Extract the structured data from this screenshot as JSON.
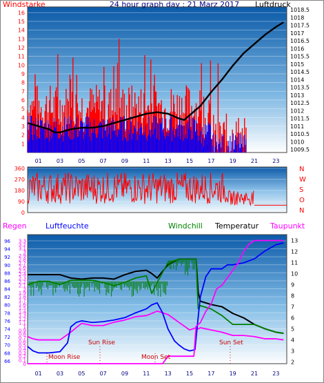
{
  "title": "24 hour graph day : 21 Marz 2017",
  "labels": {
    "windstaerke": "Windstarke",
    "luftdruck": "Luftdruck",
    "regen": "Regen",
    "luftfeuchte": "Luftfeuchte",
    "windchill": "Windchill",
    "temperatur": "Temperatur",
    "taupunkt": "Taupunkt",
    "sun_rise": "Sun Rise",
    "sun_set": "Sun Set",
    "moon_rise": "Moon Rise",
    "moon_set": "Moon Set"
  },
  "colors": {
    "wind": "#ff0000",
    "gust": "#0000ff",
    "pressure": "#000000",
    "windchill": "#008000",
    "temperature": "#000000",
    "dewpoint": "#ff00ff",
    "humidity": "#0000ff",
    "rain": "#ff00ff",
    "regen_label": "#ff00ff",
    "luftfeuchte_label": "#0000ff",
    "windchill_label": "#008000",
    "taupunkt_label": "#ff00ff",
    "windstaerke_label": "#ff0000",
    "direction_label": "#ff0000",
    "bg_top": "#0a5fb0",
    "bg_bottom": "#ffffff"
  },
  "chart_data": [
    {
      "type": "line",
      "panel": "wind-pressure",
      "x_ticks": [
        "01",
        "03",
        "05",
        "07",
        "09",
        "11",
        "13",
        "15",
        "17",
        "19",
        "21",
        "23"
      ],
      "xlim": [
        0,
        24
      ],
      "left_axis": {
        "label": "Windstarke",
        "ticks": [
          1,
          2,
          3,
          4,
          5,
          6,
          7,
          8,
          9,
          10,
          11,
          12,
          13,
          14,
          15,
          16
        ],
        "ylim": [
          0,
          16.5
        ]
      },
      "right_axis": {
        "label": "Luftdruck",
        "ticks": [
          "1009.5",
          "1010",
          "1010.5",
          "1011",
          "1011.5",
          "1012",
          "1012.5",
          "1013",
          "1013.5",
          "1014",
          "1014.5",
          "1015",
          "1015.5",
          "1016",
          "1016.5",
          "1017",
          "1017.5",
          "1018",
          "1018.5"
        ],
        "ylim": [
          1009.3,
          1018.6
        ]
      },
      "series": [
        {
          "name": "",
          "axis": "right",
          "points": [
            [
              0,
              1011.2
            ],
            [
              1,
              1011.0
            ],
            [
              2,
              1010.8
            ],
            [
              2.5,
              1010.6
            ],
            [
              3,
              1010.6
            ],
            [
              4,
              1010.8
            ],
            [
              5,
              1010.9
            ],
            [
              6,
              1010.9
            ],
            [
              7,
              1011.0
            ],
            [
              8,
              1011.2
            ],
            [
              9,
              1011.4
            ],
            [
              10,
              1011.6
            ],
            [
              11,
              1011.8
            ],
            [
              12,
              1011.9
            ],
            [
              13,
              1011.8
            ],
            [
              14,
              1011.5
            ],
            [
              14.5,
              1011.4
            ],
            [
              15,
              1011.7
            ],
            [
              16,
              1012.3
            ],
            [
              17,
              1013.2
            ],
            [
              18,
              1014.0
            ],
            [
              19,
              1014.9
            ],
            [
              20,
              1015.7
            ],
            [
              21,
              1016.3
            ],
            [
              22,
              1016.9
            ],
            [
              23,
              1017.4
            ],
            [
              23.7,
              1017.7
            ]
          ]
        }
      ]
    },
    {
      "type": "line",
      "panel": "wind-direction",
      "xlim": [
        0,
        24
      ],
      "left_ticks": [
        "0",
        "90",
        "180",
        "270",
        "360"
      ],
      "right_labels": [
        "N",
        "W",
        "S",
        "O",
        "N"
      ],
      "ylim": [
        0,
        360
      ]
    },
    {
      "type": "line",
      "panel": "temperature-humidity",
      "x_ticks": [
        "01",
        "03",
        "05",
        "07",
        "09",
        "11",
        "13",
        "15",
        "17",
        "19",
        "21",
        "23"
      ],
      "xlim": [
        0,
        24
      ],
      "regen_ticks": [
        "0",
        "0.1",
        "0.2",
        "0.3",
        "0.4",
        "0.5",
        "0.6",
        "0.7",
        "0.8",
        "0.9",
        "1",
        "1.1",
        "1.2",
        "1.3",
        "1.4",
        "1.5",
        "1.6",
        "1.7",
        "1.8",
        "1.9",
        "2",
        "2.1",
        "2.2",
        "2.3",
        "2.4",
        "2.5",
        "2.6",
        "2.7",
        "2.8",
        "2.9",
        "3",
        "3.1",
        "3.2",
        "3.3"
      ],
      "regen_ylim": [
        0,
        3.42
      ],
      "humidity_ticks": [
        "66",
        "68",
        "70",
        "72",
        "74",
        "76",
        "78",
        "80",
        "82",
        "84",
        "86",
        "88",
        "90",
        "92",
        "94",
        "96"
      ],
      "humidity_ylim": [
        65.3,
        97.2
      ],
      "temperature_ticks": [
        "2",
        "3",
        "4",
        "5",
        "6",
        "7",
        "8",
        "9",
        "10",
        "11",
        "12",
        "13"
      ],
      "temperature_ylim": [
        1.85,
        13.4
      ],
      "series": [
        {
          "name": "Temperatur",
          "axis": "temperature",
          "points": [
            [
              0,
              9.9
            ],
            [
              1,
              9.9
            ],
            [
              2,
              9.9
            ],
            [
              3,
              9.9
            ],
            [
              4,
              9.6
            ],
            [
              5,
              9.5
            ],
            [
              6,
              9.6
            ],
            [
              7,
              9.6
            ],
            [
              8,
              9.5
            ],
            [
              9,
              9.9
            ],
            [
              10,
              10.2
            ],
            [
              11,
              10.3
            ],
            [
              11.5,
              10.0
            ],
            [
              12,
              9.6
            ],
            [
              13,
              10.8
            ],
            [
              14,
              11.3
            ],
            [
              15,
              11.3
            ],
            [
              15.6,
              11.3
            ],
            [
              15.8,
              8.3
            ],
            [
              16,
              7.5
            ],
            [
              17,
              7.2
            ],
            [
              18,
              7.0
            ],
            [
              19,
              6.4
            ],
            [
              20,
              6.0
            ],
            [
              21,
              5.4
            ],
            [
              22,
              5.0
            ],
            [
              23,
              4.7
            ],
            [
              23.7,
              4.6
            ]
          ]
        },
        {
          "name": "Windchill",
          "axis": "temperature",
          "points": [
            [
              0,
              9.0
            ],
            [
              1,
              9.3
            ],
            [
              2,
              9.3
            ],
            [
              3,
              9.0
            ],
            [
              4,
              9.4
            ],
            [
              5,
              9.4
            ],
            [
              6,
              9.4
            ],
            [
              7,
              9.2
            ],
            [
              8,
              8.9
            ],
            [
              9,
              9.2
            ],
            [
              10,
              9.6
            ],
            [
              11,
              9.8
            ],
            [
              11.5,
              8.2
            ],
            [
              12,
              9.2
            ],
            [
              13,
              11.0
            ],
            [
              14,
              11.3
            ],
            [
              15,
              11.3
            ],
            [
              15.6,
              11.3
            ],
            [
              15.8,
              6.8
            ],
            [
              16,
              7.1
            ],
            [
              17,
              6.8
            ],
            [
              18,
              6.2
            ],
            [
              19,
              5.4
            ],
            [
              20,
              5.4
            ],
            [
              21,
              5.4
            ],
            [
              22,
              5.0
            ],
            [
              23,
              4.7
            ],
            [
              23.7,
              4.6
            ]
          ]
        },
        {
          "name": "Taupunkt",
          "axis": "temperature",
          "points": [
            [
              0,
              4.3
            ],
            [
              0.5,
              4.1
            ],
            [
              1,
              4.0
            ],
            [
              2,
              4.0
            ],
            [
              3,
              4.0
            ],
            [
              4,
              4.7
            ],
            [
              5,
              5.5
            ],
            [
              6,
              5.3
            ],
            [
              7,
              5.3
            ],
            [
              8,
              5.6
            ],
            [
              9,
              5.8
            ],
            [
              10,
              6.1
            ],
            [
              11,
              6.2
            ],
            [
              12,
              6.6
            ],
            [
              13,
              6.3
            ],
            [
              14,
              5.6
            ],
            [
              15,
              4.9
            ],
            [
              15.6,
              5.1
            ],
            [
              15.8,
              5.0
            ],
            [
              16,
              5.1
            ],
            [
              17,
              4.9
            ],
            [
              18,
              4.7
            ],
            [
              19,
              4.4
            ],
            [
              20,
              4.4
            ],
            [
              21,
              4.3
            ],
            [
              22,
              4.1
            ],
            [
              23,
              4.1
            ],
            [
              23.7,
              4.0
            ]
          ]
        },
        {
          "name": "Luftfeuchte",
          "axis": "humidity",
          "points": [
            [
              0,
              69.6
            ],
            [
              0.5,
              68.5
            ],
            [
              1,
              68.0
            ],
            [
              2,
              68.0
            ],
            [
              3,
              68.3
            ],
            [
              3.7,
              70.5
            ],
            [
              4,
              74.5
            ],
            [
              4.5,
              75.6
            ],
            [
              5,
              76.0
            ],
            [
              6,
              75.6
            ],
            [
              7,
              75.8
            ],
            [
              8,
              76.2
            ],
            [
              9,
              76.8
            ],
            [
              10,
              78.0
            ],
            [
              11,
              79.0
            ],
            [
              11.5,
              80.0
            ],
            [
              12,
              80.5
            ],
            [
              12.5,
              78.0
            ],
            [
              13,
              74.0
            ],
            [
              13.6,
              71.0
            ],
            [
              14,
              70.0
            ],
            [
              14.5,
              69.0
            ],
            [
              15,
              68.5
            ],
            [
              15.5,
              68.8
            ],
            [
              15.8,
              77.0
            ],
            [
              16,
              82.0
            ],
            [
              16.5,
              87.0
            ],
            [
              17,
              89.0
            ],
            [
              18,
              89.0
            ],
            [
              18.5,
              90.0
            ],
            [
              19,
              90.0
            ],
            [
              20,
              90.5
            ],
            [
              21,
              91.5
            ],
            [
              22,
              93.5
            ],
            [
              23,
              95.0
            ],
            [
              23.7,
              95.5
            ]
          ]
        },
        {
          "name": "Regen",
          "axis": "regen",
          "points": [
            [
              0,
              0
            ],
            [
              12.5,
              0
            ],
            [
              13,
              0.2
            ],
            [
              15.4,
              0.2
            ],
            [
              15.6,
              1.0
            ],
            [
              16,
              1.1
            ],
            [
              16.5,
              1.4
            ],
            [
              17,
              1.6
            ],
            [
              17.5,
              2.0
            ],
            [
              18,
              2.1
            ],
            [
              18.5,
              2.3
            ],
            [
              19,
              2.5
            ],
            [
              19.5,
              2.7
            ],
            [
              20,
              3.0
            ],
            [
              20.5,
              3.2
            ],
            [
              21,
              3.3
            ],
            [
              23.7,
              3.3
            ]
          ]
        }
      ]
    }
  ]
}
